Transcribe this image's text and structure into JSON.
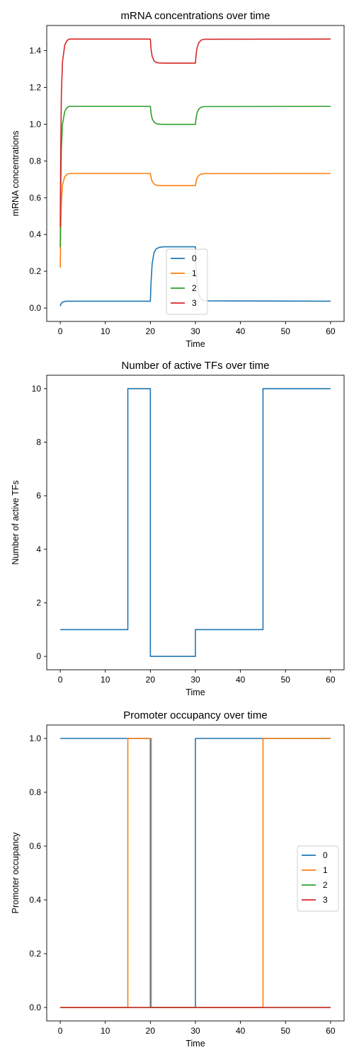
{
  "chart_data": [
    {
      "type": "line",
      "title": "mRNA concentrations over time",
      "xlabel": "Time",
      "ylabel": "mRNA concentrations",
      "xlim": [
        -3,
        63
      ],
      "ylim": [
        -0.073,
        1.537
      ],
      "xticks": [
        0,
        10,
        20,
        30,
        40,
        50,
        60
      ],
      "yticks": [
        0.0,
        0.2,
        0.4,
        0.6,
        0.8,
        1.0,
        1.2,
        1.4
      ],
      "ytick_labels": [
        "0.0",
        "0.2",
        "0.4",
        "0.6",
        "0.8",
        "1.0",
        "1.2",
        "1.4"
      ],
      "legend": {
        "placement": "lower-center",
        "entries": [
          "0",
          "1",
          "2",
          "3"
        ]
      },
      "grid": false,
      "series": [
        {
          "name": "0",
          "color": "#1f77b4",
          "x": [
            0,
            0.1,
            0.25,
            0.5,
            1,
            1.5,
            2,
            20,
            20.15,
            20.4,
            20.8,
            21.3,
            22,
            23,
            30,
            30.15,
            30.4,
            30.8,
            31.3,
            32,
            60
          ],
          "y": [
            0.01,
            0.018,
            0.026,
            0.032,
            0.036,
            0.037,
            0.037,
            0.037,
            0.14,
            0.24,
            0.3,
            0.322,
            0.33,
            0.333,
            0.333,
            0.23,
            0.13,
            0.07,
            0.046,
            0.039,
            0.037
          ]
        },
        {
          "name": "1",
          "color": "#ff7f0e",
          "x": [
            0,
            0.1,
            0.25,
            0.5,
            1,
            1.5,
            2,
            20,
            20.15,
            20.4,
            20.8,
            21.3,
            22,
            23,
            30,
            30.15,
            30.4,
            30.8,
            31.3,
            32,
            60
          ],
          "y": [
            0.22,
            0.42,
            0.58,
            0.67,
            0.715,
            0.727,
            0.732,
            0.732,
            0.71,
            0.69,
            0.675,
            0.668,
            0.666,
            0.666,
            0.666,
            0.69,
            0.71,
            0.722,
            0.729,
            0.731,
            0.732
          ]
        },
        {
          "name": "2",
          "color": "#2ca02c",
          "x": [
            0,
            0.1,
            0.25,
            0.5,
            1,
            1.5,
            2,
            20,
            20.15,
            20.4,
            20.8,
            21.3,
            22,
            23,
            30,
            30.15,
            30.4,
            30.8,
            31.3,
            32,
            60
          ],
          "y": [
            0.33,
            0.63,
            0.87,
            1.0,
            1.07,
            1.09,
            1.097,
            1.097,
            1.06,
            1.03,
            1.012,
            1.003,
            1.0,
            0.999,
            0.999,
            1.035,
            1.065,
            1.084,
            1.093,
            1.096,
            1.097
          ]
        },
        {
          "name": "3",
          "color": "#d62728",
          "x": [
            0,
            0.1,
            0.25,
            0.5,
            1,
            1.5,
            2,
            20,
            20.15,
            20.4,
            20.8,
            21.3,
            22,
            23,
            30,
            30.15,
            30.4,
            30.8,
            31.3,
            32,
            60
          ],
          "y": [
            0.44,
            0.84,
            1.16,
            1.34,
            1.43,
            1.455,
            1.463,
            1.463,
            1.41,
            1.37,
            1.345,
            1.336,
            1.333,
            1.332,
            1.332,
            1.38,
            1.42,
            1.445,
            1.458,
            1.462,
            1.463
          ]
        }
      ]
    },
    {
      "type": "line",
      "title": "Number of active TFs over time",
      "xlabel": "Time",
      "ylabel": "Number of active TFs",
      "xlim": [
        -3,
        63
      ],
      "ylim": [
        -0.5,
        10.5
      ],
      "xticks": [
        0,
        10,
        20,
        30,
        40,
        50,
        60
      ],
      "yticks": [
        0,
        2,
        4,
        6,
        8,
        10
      ],
      "ytick_labels": [
        "0",
        "2",
        "4",
        "6",
        "8",
        "10"
      ],
      "grid": false,
      "series": [
        {
          "color": "#1f77b4",
          "x": [
            0,
            15,
            15,
            20,
            20,
            30,
            30,
            45,
            45,
            60
          ],
          "y": [
            1,
            1,
            10,
            10,
            0,
            0,
            1,
            1,
            10,
            10
          ]
        }
      ]
    },
    {
      "type": "line",
      "title": "Promoter occupancy over time",
      "xlabel": "Time",
      "ylabel": "Promoter occupancy",
      "xlim": [
        -3,
        63
      ],
      "ylim": [
        -0.05,
        1.05
      ],
      "xticks": [
        0,
        10,
        20,
        30,
        40,
        50,
        60
      ],
      "yticks": [
        0.0,
        0.2,
        0.4,
        0.6,
        0.8,
        1.0
      ],
      "ytick_labels": [
        "0.0",
        "0.2",
        "0.4",
        "0.6",
        "0.8",
        "1.0"
      ],
      "legend": {
        "placement": "center-right",
        "entries": [
          "0",
          "1",
          "2",
          "3"
        ]
      },
      "grid": false,
      "series": [
        {
          "name": "0",
          "color": "#1f77b4",
          "x": [
            0,
            15,
            15,
            20,
            20,
            30,
            30,
            60
          ],
          "y": [
            1,
            1,
            1,
            1,
            0,
            0,
            1,
            1
          ]
        },
        {
          "name": "1",
          "color": "#ff7f0e",
          "x": [
            0,
            15,
            15,
            20.2,
            20.2,
            45,
            45,
            60
          ],
          "y": [
            0,
            0,
            1,
            1,
            0,
            0,
            1,
            1
          ]
        },
        {
          "name": "2",
          "color": "#2ca02c",
          "x": [
            0,
            60
          ],
          "y": [
            0,
            0
          ]
        },
        {
          "name": "3",
          "color": "#d62728",
          "x": [
            0,
            60
          ],
          "y": [
            0,
            0
          ]
        }
      ]
    }
  ]
}
